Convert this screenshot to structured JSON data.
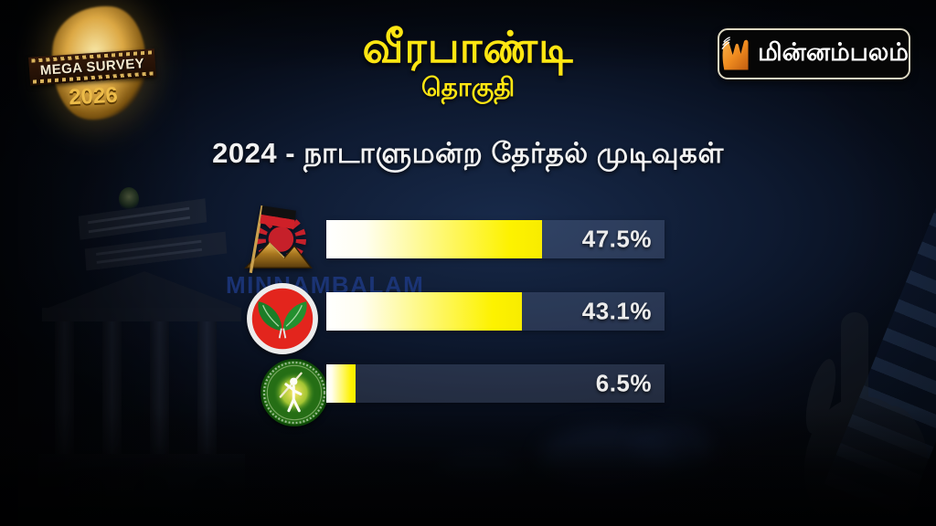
{
  "brand": {
    "survey_logo_line1": "MEGA SURVEY",
    "survey_logo_line2": "2026",
    "badge_text": "மின்னம்பலம்",
    "badge_accent_color": "#ef8b1f"
  },
  "title": "வீரபாண்டி",
  "subtitle": "தொகுதி",
  "section_title": "2024 - நாடாளுமன்ற தேர்தல் முடிவுகள்",
  "watermark": "MINNAMBALAM",
  "chart_data": {
    "type": "bar",
    "orientation": "horizontal",
    "title": "2024 - நாடாளுமன்ற தேர்தல் முடிவுகள்",
    "categories": [
      "DMK",
      "AIADMK",
      "NTK"
    ],
    "category_logos": [
      "dmk-rising-sun-flag-logo",
      "aiadmk-two-leaves-logo",
      "ntk-farmer-badge-logo"
    ],
    "values": [
      47.5,
      43.1,
      6.5
    ],
    "value_labels": [
      "47.5%",
      "43.1%",
      "6.5%"
    ],
    "xlim": [
      0,
      100
    ],
    "grid": false,
    "legend": false,
    "bar_fill_gradient": [
      "#ffffff",
      "#fdf200"
    ],
    "track_color": "rgba(150,170,215,0.20)",
    "value_text_color": "#ececec"
  },
  "colors": {
    "title_yellow": "#ffe612",
    "headline_white": "#f2f2f2",
    "background_navy": "#0e1a31",
    "watermark_blue": "#1e3a85"
  }
}
